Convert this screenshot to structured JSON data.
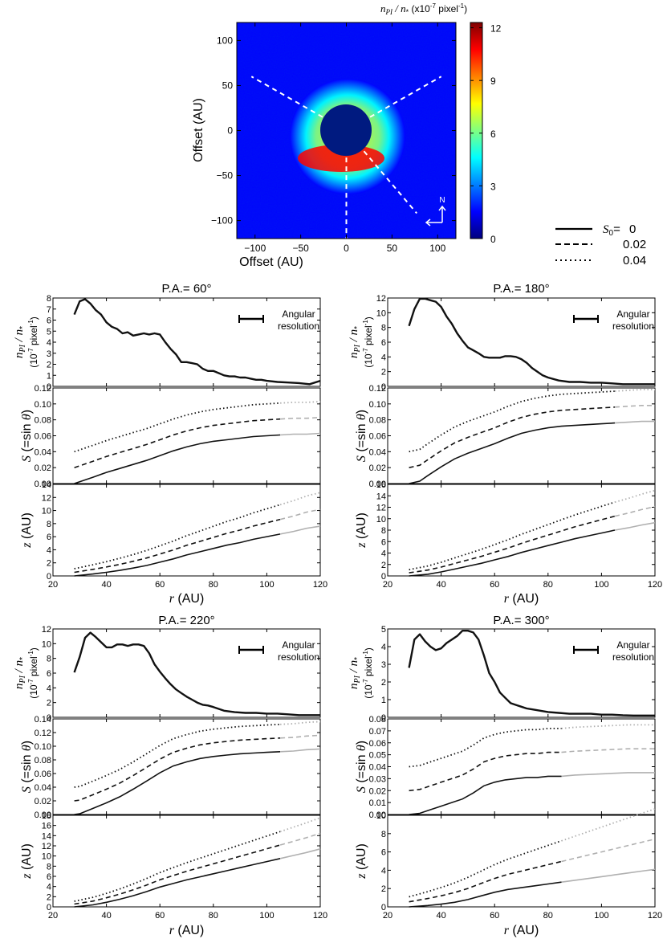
{
  "colors": {
    "cmap": [
      "#00007f",
      "#0000ff",
      "#0080ff",
      "#00ffff",
      "#80ff80",
      "#ffff00",
      "#ff8000",
      "#ff0000",
      "#7f0000"
    ],
    "mask": "#001a80",
    "dashline": "#ffffff",
    "current": "#111111",
    "extrap": "#b0b0b0"
  },
  "image_panel": {
    "title_main": "n",
    "title_sub": "PI",
    "title_mid": " / n",
    "title_sub2": "*",
    "title_units": " (x10",
    "title_exp": "-7",
    "title_tail": " pixel",
    "title_exp2": "-1",
    "title_close": ")",
    "xlabel": "Offset (AU)",
    "ylabel": "Offset (AU)",
    "x_ticks": [
      "−100",
      "−50",
      "0",
      "50",
      "100"
    ],
    "y_ticks": [
      "100",
      "50",
      "0",
      "−50",
      "−100"
    ],
    "compass_label": "N",
    "colorbar_ticks": [
      "12",
      "9",
      "6",
      "3",
      "0"
    ]
  },
  "legend": {
    "title": "S",
    "title_sub": "0",
    "title_eq": "= 0",
    "entries": [
      "0",
      "0.02",
      "0.04"
    ]
  },
  "common": {
    "angular_resolution_1": "Angular",
    "angular_resolution_2": "resolution",
    "ylabel_np_a": "n",
    "ylabel_np_sub": "PI",
    "ylabel_np_b": " / n",
    "ylabel_np_sub2": "*",
    "ylabel_np_units": "(10",
    "ylabel_np_exp": "-7",
    "ylabel_np_tail": " pixel",
    "ylabel_np_exp2": "-1",
    "ylabel_np_close": ")",
    "ylabel_s_a": "S",
    "ylabel_s_b": " (=sin ",
    "ylabel_s_theta": "θ",
    "ylabel_s_c": ")",
    "ylabel_z_a": "z",
    "ylabel_z_b": " (AU)",
    "xlabel_a": "r",
    "xlabel_b": " (AU)",
    "x_ticks": [
      "20",
      "40",
      "60",
      "80",
      "100",
      "120"
    ]
  },
  "chart_data": [
    {
      "type": "image",
      "title": "n_PI / n_* (x10^-7 pixel^-1)",
      "xlabel": "Offset (AU)",
      "ylabel": "Offset (AU)",
      "xlim": [
        -120,
        120
      ],
      "ylim": [
        -120,
        120
      ],
      "colorbar": {
        "min": 0,
        "max": 12.3,
        "ticks": [
          0,
          3,
          6,
          9,
          12
        ]
      },
      "mask_radius_au": 28,
      "dashed_cuts_pa_deg": [
        60,
        180,
        220,
        300
      ]
    },
    {
      "type": "line",
      "title": "P.A.= 60°",
      "xlabel": "r (AU)",
      "xlim": [
        20,
        120
      ],
      "r_ext": 109,
      "np": {
        "ylim": [
          0,
          8
        ],
        "ticks": [
          0,
          1,
          2,
          3,
          4,
          5,
          6,
          7,
          8
        ],
        "x": [
          28,
          30,
          32,
          34,
          36,
          38,
          40,
          42,
          44,
          46,
          48,
          50,
          52,
          54,
          56,
          58,
          60,
          62,
          64,
          66,
          68,
          70,
          72,
          74,
          76,
          78,
          80,
          82,
          84,
          86,
          88,
          90,
          92,
          94,
          96,
          98,
          100,
          104,
          108,
          112,
          116,
          120
        ],
        "y": [
          6.5,
          7.7,
          7.9,
          7.5,
          6.9,
          6.5,
          5.8,
          5.4,
          5.2,
          4.8,
          4.9,
          4.6,
          4.7,
          4.8,
          4.7,
          4.8,
          4.7,
          4.0,
          3.4,
          2.9,
          2.2,
          2.2,
          2.1,
          2.0,
          1.6,
          1.4,
          1.4,
          1.2,
          1.0,
          0.9,
          0.9,
          0.8,
          0.8,
          0.7,
          0.6,
          0.6,
          0.5,
          0.4,
          0.35,
          0.3,
          0.2,
          0.5
        ]
      },
      "s": {
        "ylim": [
          0,
          0.12
        ],
        "ticks": [
          0,
          0.02,
          0.04,
          0.06,
          0.08,
          0.1,
          0.12
        ],
        "x": [
          28,
          35,
          40,
          45,
          50,
          55,
          60,
          65,
          70,
          75,
          80,
          85,
          90,
          95,
          100,
          105,
          110,
          115,
          120
        ],
        "y": [
          0,
          0.008,
          0.014,
          0.019,
          0.024,
          0.029,
          0.035,
          0.041,
          0.046,
          0.05,
          0.053,
          0.055,
          0.057,
          0.059,
          0.06,
          0.061,
          0.062,
          0.062,
          0.063
        ]
      },
      "z": {
        "ylim": [
          0,
          14
        ],
        "ticks": [
          0,
          2,
          4,
          6,
          8,
          10,
          12,
          14
        ],
        "x": [
          28,
          35,
          40,
          45,
          50,
          55,
          60,
          65,
          70,
          75,
          80,
          85,
          90,
          95,
          100,
          105,
          110,
          115,
          120
        ],
        "y": [
          0,
          0.3,
          0.55,
          0.85,
          1.2,
          1.6,
          2.1,
          2.6,
          3.2,
          3.7,
          4.2,
          4.7,
          5.1,
          5.6,
          6.0,
          6.4,
          6.8,
          7.3,
          7.6
        ]
      }
    },
    {
      "type": "line",
      "title": "P.A.= 180°",
      "xlabel": "r (AU)",
      "xlim": [
        20,
        120
      ],
      "r_ext": 109,
      "np": {
        "ylim": [
          0,
          12
        ],
        "ticks": [
          0,
          2,
          4,
          6,
          8,
          10,
          12
        ],
        "x": [
          28,
          30,
          32,
          34,
          36,
          38,
          40,
          42,
          44,
          46,
          48,
          50,
          52,
          54,
          56,
          58,
          60,
          62,
          64,
          66,
          68,
          70,
          72,
          74,
          76,
          78,
          80,
          84,
          88,
          92,
          96,
          100,
          104,
          108,
          112,
          116,
          120
        ],
        "y": [
          8.2,
          10.5,
          11.9,
          11.9,
          11.7,
          11.5,
          10.8,
          9.5,
          8.5,
          7.2,
          6.2,
          5.3,
          4.9,
          4.5,
          4.0,
          3.9,
          3.9,
          3.9,
          4.1,
          4.1,
          4.0,
          3.7,
          3.2,
          2.5,
          2.0,
          1.5,
          1.2,
          0.8,
          0.6,
          0.6,
          0.5,
          0.5,
          0.4,
          0.3,
          0.3,
          0.3,
          0.3
        ]
      },
      "s": {
        "ylim": [
          0,
          0.12
        ],
        "ticks": [
          0,
          0.02,
          0.04,
          0.06,
          0.08,
          0.1,
          0.12
        ],
        "x": [
          28,
          32,
          35,
          40,
          45,
          50,
          55,
          60,
          65,
          70,
          75,
          80,
          85,
          90,
          95,
          100,
          105,
          110,
          115,
          120
        ],
        "y": [
          0,
          0.003,
          0.01,
          0.021,
          0.031,
          0.038,
          0.044,
          0.05,
          0.057,
          0.063,
          0.067,
          0.07,
          0.072,
          0.073,
          0.074,
          0.075,
          0.076,
          0.077,
          0.078,
          0.078
        ]
      },
      "z": {
        "ylim": [
          0,
          16
        ],
        "ticks": [
          0,
          2,
          4,
          6,
          8,
          10,
          12,
          14,
          16
        ],
        "x": [
          28,
          35,
          40,
          45,
          50,
          55,
          60,
          65,
          70,
          75,
          80,
          85,
          90,
          95,
          100,
          105,
          110,
          115,
          120
        ],
        "y": [
          0,
          0.3,
          0.7,
          1.2,
          1.7,
          2.2,
          2.8,
          3.4,
          4.1,
          4.7,
          5.3,
          5.9,
          6.5,
          7.0,
          7.5,
          8.0,
          8.4,
          8.9,
          9.3
        ]
      }
    },
    {
      "type": "line",
      "title": "P.A.= 220°",
      "xlabel": "r (AU)",
      "xlim": [
        20,
        120
      ],
      "r_ext": 109,
      "np": {
        "ylim": [
          0,
          12
        ],
        "ticks": [
          0,
          2,
          4,
          6,
          8,
          10,
          12
        ],
        "x": [
          28,
          30,
          32,
          34,
          36,
          38,
          40,
          42,
          44,
          46,
          48,
          50,
          52,
          54,
          56,
          58,
          60,
          62,
          64,
          66,
          68,
          70,
          72,
          74,
          76,
          78,
          80,
          84,
          88,
          92,
          96,
          100,
          104,
          108,
          112,
          116,
          120
        ],
        "y": [
          6.1,
          8.2,
          10.8,
          11.5,
          10.9,
          10.2,
          9.5,
          9.5,
          9.9,
          9.9,
          9.7,
          9.9,
          9.9,
          9.7,
          8.7,
          7.2,
          6.2,
          5.3,
          4.5,
          3.8,
          3.3,
          2.8,
          2.4,
          2.0,
          1.7,
          1.6,
          1.4,
          0.9,
          0.7,
          0.6,
          0.6,
          0.5,
          0.5,
          0.4,
          0.3,
          0.3,
          0.3
        ]
      },
      "s": {
        "ylim": [
          0,
          0.14
        ],
        "ticks": [
          0,
          0.02,
          0.04,
          0.06,
          0.08,
          0.1,
          0.12,
          0.14
        ],
        "x": [
          28,
          30,
          35,
          40,
          45,
          50,
          55,
          60,
          65,
          70,
          75,
          80,
          85,
          90,
          95,
          100,
          105,
          110,
          115,
          120
        ],
        "y": [
          0,
          0.001,
          0.009,
          0.017,
          0.026,
          0.037,
          0.049,
          0.061,
          0.071,
          0.077,
          0.082,
          0.085,
          0.087,
          0.089,
          0.09,
          0.091,
          0.092,
          0.093,
          0.095,
          0.096
        ]
      },
      "z": {
        "ylim": [
          0,
          18
        ],
        "ticks": [
          0,
          2,
          4,
          6,
          8,
          10,
          12,
          14,
          16,
          18
        ],
        "x": [
          28,
          35,
          40,
          45,
          50,
          55,
          60,
          65,
          70,
          75,
          80,
          85,
          90,
          95,
          100,
          105,
          110,
          115,
          120
        ],
        "y": [
          0,
          0.4,
          0.9,
          1.5,
          2.2,
          3.0,
          3.9,
          4.6,
          5.3,
          5.9,
          6.5,
          7.1,
          7.7,
          8.3,
          8.9,
          9.5,
          10.1,
          10.7,
          11.4
        ]
      }
    },
    {
      "type": "line",
      "title": "P.A.= 300°",
      "xlabel": "r (AU)",
      "xlim": [
        20,
        120
      ],
      "r_ext": 86,
      "np": {
        "ylim": [
          0,
          5
        ],
        "ticks": [
          0,
          1,
          2,
          3,
          4,
          5
        ],
        "x": [
          28,
          30,
          32,
          34,
          36,
          38,
          40,
          42,
          44,
          46,
          48,
          50,
          52,
          54,
          56,
          58,
          60,
          62,
          64,
          66,
          68,
          70,
          72,
          74,
          76,
          78,
          80,
          84,
          88,
          92,
          96,
          100,
          104,
          108,
          112,
          116,
          120
        ],
        "y": [
          2.8,
          4.4,
          4.7,
          4.3,
          4.0,
          3.8,
          3.9,
          4.2,
          4.4,
          4.6,
          4.9,
          4.9,
          4.8,
          4.4,
          3.5,
          2.5,
          2.0,
          1.4,
          1.1,
          0.8,
          0.7,
          0.6,
          0.5,
          0.45,
          0.4,
          0.35,
          0.3,
          0.25,
          0.2,
          0.2,
          0.2,
          0.15,
          0.15,
          0.12,
          0.1,
          0.1,
          0.1
        ]
      },
      "s": {
        "ylim": [
          0,
          0.08
        ],
        "ticks": [
          0,
          0.01,
          0.02,
          0.03,
          0.04,
          0.05,
          0.06,
          0.07,
          0.08
        ],
        "x": [
          28,
          32,
          36,
          40,
          44,
          48,
          52,
          56,
          60,
          64,
          68,
          72,
          76,
          80,
          85,
          90,
          100,
          110,
          120
        ],
        "y": [
          0,
          0.001,
          0.004,
          0.007,
          0.01,
          0.013,
          0.018,
          0.024,
          0.027,
          0.029,
          0.03,
          0.031,
          0.031,
          0.032,
          0.032,
          0.033,
          0.034,
          0.035,
          0.035
        ]
      },
      "z": {
        "ylim": [
          0,
          10
        ],
        "ticks": [
          0,
          2,
          4,
          6,
          8,
          10
        ],
        "x": [
          28,
          35,
          40,
          45,
          50,
          55,
          60,
          65,
          70,
          75,
          80,
          85,
          90,
          95,
          100,
          105,
          110,
          115,
          120
        ],
        "y": [
          0,
          0.15,
          0.3,
          0.5,
          0.8,
          1.2,
          1.6,
          1.9,
          2.1,
          2.3,
          2.5,
          2.7,
          2.9,
          3.1,
          3.3,
          3.5,
          3.7,
          3.9,
          4.1
        ]
      }
    }
  ]
}
